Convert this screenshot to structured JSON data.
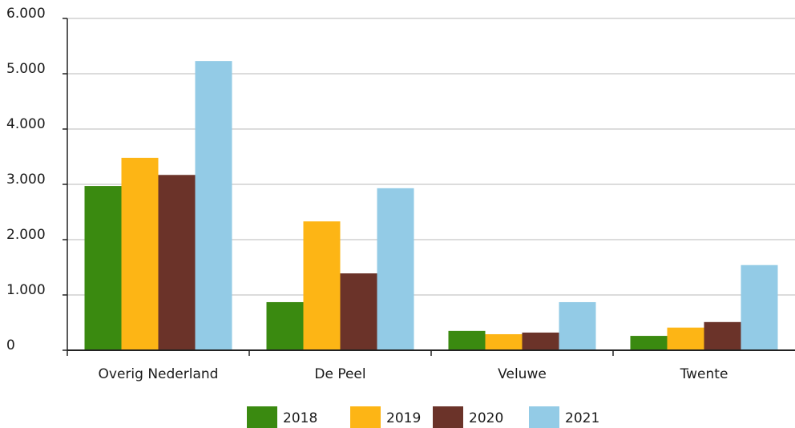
{
  "chart_data": {
    "type": "bar",
    "categories": [
      "Overig Nederland",
      "De Peel",
      "Veluwe",
      "Twente"
    ],
    "series": [
      {
        "name": "2018",
        "color": "#3a8a10",
        "values": [
          2970,
          870,
          350,
          260
        ]
      },
      {
        "name": "2019",
        "color": "#fdb515",
        "values": [
          3480,
          2330,
          290,
          410
        ]
      },
      {
        "name": "2020",
        "color": "#6b3329",
        "values": [
          3170,
          1390,
          320,
          510
        ]
      },
      {
        "name": "2021",
        "color": "#93cbe6",
        "values": [
          5230,
          2930,
          870,
          1540
        ]
      }
    ],
    "ylim": [
      0,
      6000
    ],
    "yticks": [
      0,
      {
        "value": 1000,
        "label": "1.000"
      },
      {
        "value": 2000,
        "label": "2.000"
      },
      {
        "value": 3000,
        "label": "3.000"
      },
      {
        "value": 4000,
        "label": "4.000"
      },
      {
        "value": 5000,
        "label": "5.000"
      },
      {
        "value": 6000,
        "label": "6.000"
      }
    ],
    "grid": true,
    "legend": "bottom"
  }
}
